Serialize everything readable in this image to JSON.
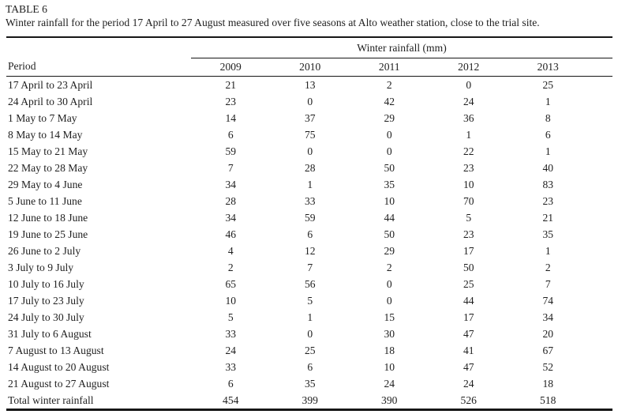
{
  "caption": {
    "label": "TABLE 6",
    "description": "Winter rainfall for the period 17 April to 27 August measured over five seasons at Alto weather station, close to the trial site."
  },
  "table": {
    "period_header": "Period",
    "group_header": "Winter rainfall (mm)",
    "years": [
      "2009",
      "2010",
      "2011",
      "2012",
      "2013"
    ],
    "rows": [
      {
        "period": "17 April to 23 April",
        "values": [
          21,
          13,
          2,
          0,
          25
        ]
      },
      {
        "period": "24 April to 30 April",
        "values": [
          23,
          0,
          42,
          24,
          1
        ]
      },
      {
        "period": "1 May to 7 May",
        "values": [
          14,
          37,
          29,
          36,
          8
        ]
      },
      {
        "period": "8 May to 14 May",
        "values": [
          6,
          75,
          0,
          1,
          6
        ]
      },
      {
        "period": "15 May to 21 May",
        "values": [
          59,
          0,
          0,
          22,
          1
        ]
      },
      {
        "period": "22 May to 28 May",
        "values": [
          7,
          28,
          50,
          23,
          40
        ]
      },
      {
        "period": "29 May to 4 June",
        "values": [
          34,
          1,
          35,
          10,
          83
        ]
      },
      {
        "period": "5 June to 11 June",
        "values": [
          28,
          33,
          10,
          70,
          23
        ]
      },
      {
        "period": "12 June to 18 June",
        "values": [
          34,
          59,
          44,
          5,
          21
        ]
      },
      {
        "period": "19 June to 25 June",
        "values": [
          46,
          6,
          50,
          23,
          35
        ]
      },
      {
        "period": "26 June to 2 July",
        "values": [
          4,
          12,
          29,
          17,
          1
        ]
      },
      {
        "period": "3 July to 9 July",
        "values": [
          2,
          7,
          2,
          50,
          2
        ]
      },
      {
        "period": "10 July to 16 July",
        "values": [
          65,
          56,
          0,
          25,
          7
        ]
      },
      {
        "period": "17 July to 23 July",
        "values": [
          10,
          5,
          0,
          44,
          74
        ]
      },
      {
        "period": "24 July to 30 July",
        "values": [
          5,
          1,
          15,
          17,
          34
        ]
      },
      {
        "period": "31 July to 6 August",
        "values": [
          33,
          0,
          30,
          47,
          20
        ]
      },
      {
        "period": "7 August to 13 August",
        "values": [
          24,
          25,
          18,
          41,
          67
        ]
      },
      {
        "period": "14 August to 20 August",
        "values": [
          33,
          6,
          10,
          47,
          52
        ]
      },
      {
        "period": "21 August to 27 August",
        "values": [
          6,
          35,
          24,
          24,
          18
        ]
      }
    ],
    "total_row": {
      "period": "Total winter rainfall",
      "values": [
        454,
        399,
        390,
        526,
        518
      ]
    }
  },
  "colors": {
    "text": "#1f1f1f",
    "rule": "#161616",
    "background": "#ffffff"
  }
}
